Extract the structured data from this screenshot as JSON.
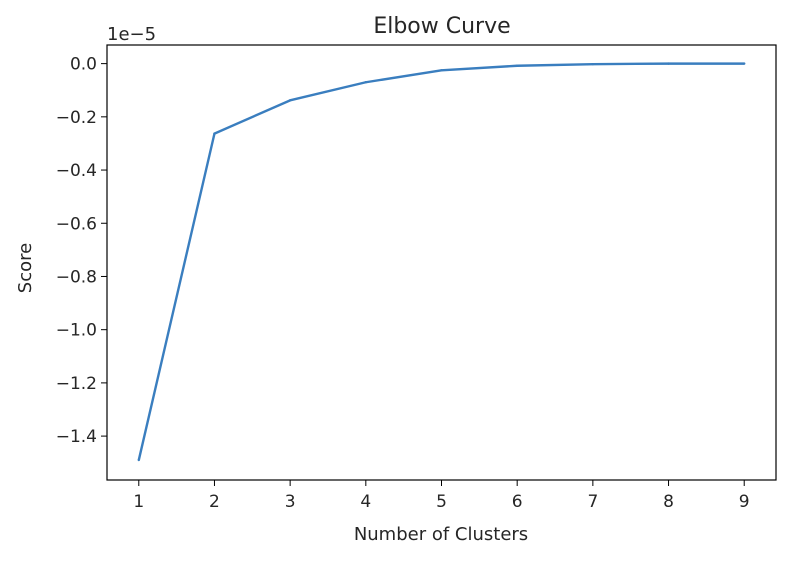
{
  "chart_data": {
    "type": "line",
    "title": "Elbow Curve",
    "xlabel": "Number of Clusters",
    "ylabel": "Score",
    "y_offset_label": "1e−5",
    "x": [
      1,
      2,
      3,
      4,
      5,
      6,
      7,
      8,
      9
    ],
    "series": [
      {
        "values": [
          -1.49,
          -0.263,
          -0.138,
          -0.07,
          -0.025,
          -0.008,
          -0.002,
          0.0,
          0.0
        ]
      }
    ],
    "xlim": [
      0.58,
      9.42
    ],
    "ylim": [
      -1.565,
      0.07
    ],
    "x_ticks": [
      "1",
      "2",
      "3",
      "4",
      "5",
      "6",
      "7",
      "8",
      "9"
    ],
    "y_ticks": [
      {
        "value": 0.0,
        "label": "0.0"
      },
      {
        "value": -0.2,
        "label": "−0.2"
      },
      {
        "value": -0.4,
        "label": "−0.4"
      },
      {
        "value": -0.6,
        "label": "−0.6"
      },
      {
        "value": -0.8,
        "label": "−0.8"
      },
      {
        "value": -1.0,
        "label": "−1.0"
      },
      {
        "value": -1.2,
        "label": "−1.2"
      },
      {
        "value": -1.4,
        "label": "−1.4"
      }
    ],
    "grid": false,
    "line_color": "#3a7ebf"
  }
}
